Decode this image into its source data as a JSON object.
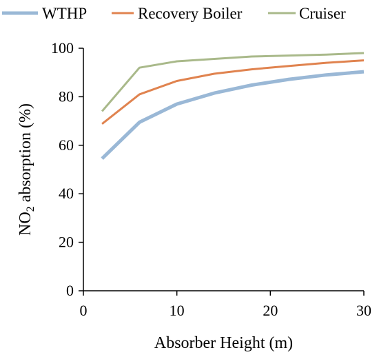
{
  "chart_data": {
    "type": "line",
    "title": "",
    "xlabel": "Absorber Height (m)",
    "ylabel_main": "NO",
    "ylabel_sub": "2",
    "ylabel_rest": " absorption  (%)",
    "xlim": [
      0,
      30
    ],
    "ylim": [
      0,
      100
    ],
    "xticks": [
      0,
      10,
      20,
      30
    ],
    "yticks": [
      0,
      20,
      40,
      60,
      80,
      100
    ],
    "grid": false,
    "legend_position": "top",
    "series": [
      {
        "name": "WTHP",
        "color": "#9ab8d6",
        "x": [
          2,
          6,
          10,
          14,
          18,
          22,
          26,
          30
        ],
        "y": [
          54.5,
          69.5,
          77,
          81.5,
          84.8,
          87.2,
          89,
          90.3
        ]
      },
      {
        "name": "Recovery Boiler",
        "color": "#e0834f",
        "x": [
          2,
          6,
          10,
          14,
          18,
          22,
          26,
          30
        ],
        "y": [
          68.8,
          81,
          86.5,
          89.5,
          91.3,
          92.7,
          94,
          95
        ]
      },
      {
        "name": "Cruiser",
        "color": "#a9b98a",
        "x": [
          2,
          6,
          10,
          14,
          18,
          22,
          26,
          30
        ],
        "y": [
          74,
          92,
          94.6,
          95.6,
          96.6,
          97,
          97.4,
          98
        ]
      }
    ]
  }
}
